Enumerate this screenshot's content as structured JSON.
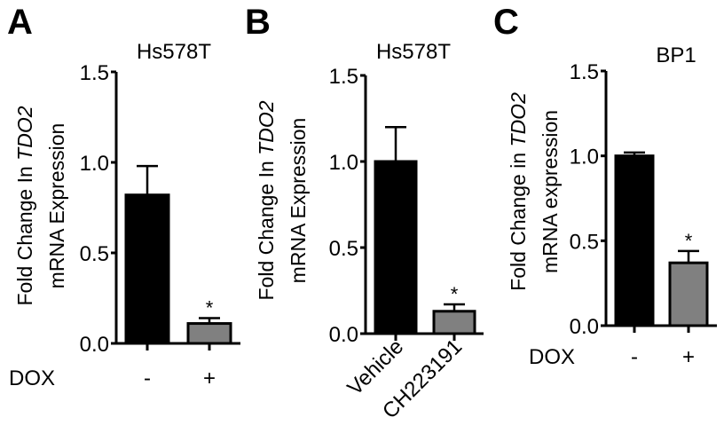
{
  "figure": {
    "panels": [
      {
        "letter": "A",
        "title": "Hs578T"
      },
      {
        "letter": "B",
        "title": "Hs578T"
      },
      {
        "letter": "C",
        "title": "BP1"
      }
    ]
  },
  "chart_data": [
    {
      "panel": "A",
      "type": "bar",
      "title": "Hs578T",
      "ylabel_line1": [
        "Fold Change In ",
        "TDO2"
      ],
      "ylabel_line2": "mRNA Expression",
      "xlabel": "DOX",
      "categories": [
        "-",
        "+"
      ],
      "values": [
        0.82,
        0.11
      ],
      "errors": [
        0.16,
        0.03
      ],
      "bar_colors": [
        "#000000",
        "#808080"
      ],
      "significance": [
        "",
        "*"
      ],
      "yticks": [
        "0.0",
        "0.5",
        "1.0",
        "1.5"
      ],
      "ylim": [
        0,
        1.5
      ],
      "rotated_xticks": false
    },
    {
      "panel": "B",
      "type": "bar",
      "title": "Hs578T",
      "ylabel_line1": [
        "Fold Change In ",
        "TDO2"
      ],
      "ylabel_line2": "mRNA Expression",
      "xlabel": "",
      "categories": [
        "Vehicle",
        "CH223191"
      ],
      "values": [
        1.0,
        0.13
      ],
      "errors": [
        0.2,
        0.04
      ],
      "bar_colors": [
        "#000000",
        "#808080"
      ],
      "significance": [
        "",
        "*"
      ],
      "yticks": [
        "0.0",
        "0.5",
        "1.0",
        "1.5"
      ],
      "ylim": [
        0,
        1.5
      ],
      "rotated_xticks": true
    },
    {
      "panel": "C",
      "type": "bar",
      "title": "BP1",
      "ylabel_line1": [
        "Fold Change in ",
        "TDO2"
      ],
      "ylabel_line2": "mRNA expression",
      "xlabel": "DOX",
      "categories": [
        "-",
        "+"
      ],
      "values": [
        1.0,
        0.37
      ],
      "errors": [
        0.02,
        0.07
      ],
      "bar_colors": [
        "#000000",
        "#808080"
      ],
      "significance": [
        "",
        "*"
      ],
      "yticks": [
        "0.0",
        "0.5",
        "1.0",
        "1.5"
      ],
      "ylim": [
        0,
        1.5
      ],
      "rotated_xticks": false
    }
  ]
}
